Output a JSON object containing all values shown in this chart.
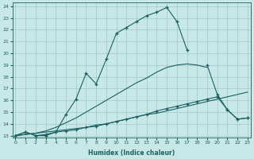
{
  "xlabel": "Humidex (Indice chaleur)",
  "bg_color": "#c8e8e8",
  "grid_color": "#a0c8c8",
  "line_color": "#1a6060",
  "xticks": [
    0,
    1,
    2,
    3,
    4,
    5,
    6,
    7,
    8,
    9,
    10,
    11,
    12,
    13,
    14,
    15,
    16,
    17,
    18,
    19,
    20,
    21,
    22,
    23
  ],
  "yticks": [
    13,
    14,
    15,
    16,
    17,
    18,
    19,
    20,
    21,
    22,
    23,
    24
  ],
  "line1_no_marker": {
    "x": [
      0,
      1,
      2,
      3,
      4,
      5,
      6,
      7,
      8,
      9,
      10,
      11,
      12,
      13,
      14,
      15,
      16,
      17,
      18,
      19,
      20,
      21,
      22,
      23
    ],
    "y": [
      13,
      13.1,
      13.2,
      13.3,
      13.4,
      13.5,
      13.6,
      13.7,
      13.9,
      14.0,
      14.2,
      14.4,
      14.6,
      14.8,
      14.9,
      15.1,
      15.3,
      15.5,
      15.7,
      15.9,
      16.1,
      16.3,
      16.5,
      16.7
    ]
  },
  "line2_no_marker": {
    "x": [
      0,
      1,
      2,
      3,
      4,
      5,
      6,
      7,
      8,
      9,
      10,
      11,
      12,
      13,
      14,
      15,
      16,
      17,
      18,
      19,
      20,
      21,
      22,
      23
    ],
    "y": [
      13,
      13.1,
      13.2,
      13.4,
      13.7,
      14.1,
      14.5,
      15.0,
      15.5,
      16.0,
      16.5,
      17.0,
      17.5,
      17.9,
      18.4,
      18.8,
      19.0,
      19.1,
      19.0,
      18.8,
      null,
      null,
      null,
      null
    ]
  },
  "line3_with_marker_a": {
    "x": [
      0,
      1,
      2,
      3,
      4,
      5,
      6,
      7,
      8,
      9,
      10,
      11,
      12,
      13,
      14,
      15,
      16,
      17
    ],
    "y": [
      13,
      13.3,
      13.0,
      13.0,
      13.3,
      14.8,
      16.1,
      18.3,
      17.4,
      19.5,
      21.7,
      22.2,
      22.7,
      23.2,
      23.5,
      23.9,
      22.7,
      20.3
    ]
  },
  "line3_with_marker_b": {
    "x": [
      19,
      20,
      21,
      22,
      23
    ],
    "y": [
      19.0,
      16.5,
      15.2,
      14.4,
      14.5
    ]
  },
  "line4_with_marker_a": {
    "x": [
      0,
      1,
      2,
      3,
      4,
      5,
      6,
      7,
      8,
      9,
      10,
      11,
      12,
      13,
      14,
      15,
      16,
      17,
      18,
      19,
      20
    ],
    "y": [
      13,
      13.3,
      13.0,
      13.1,
      13.3,
      13.4,
      13.5,
      13.7,
      13.8,
      14.0,
      14.2,
      14.4,
      14.6,
      14.8,
      15.1,
      15.3,
      15.5,
      15.7,
      15.9,
      16.1,
      16.3
    ]
  },
  "line4_with_marker_b": {
    "x": [
      20,
      21,
      22,
      23
    ],
    "y": [
      16.3,
      15.2,
      14.4,
      14.5
    ]
  }
}
